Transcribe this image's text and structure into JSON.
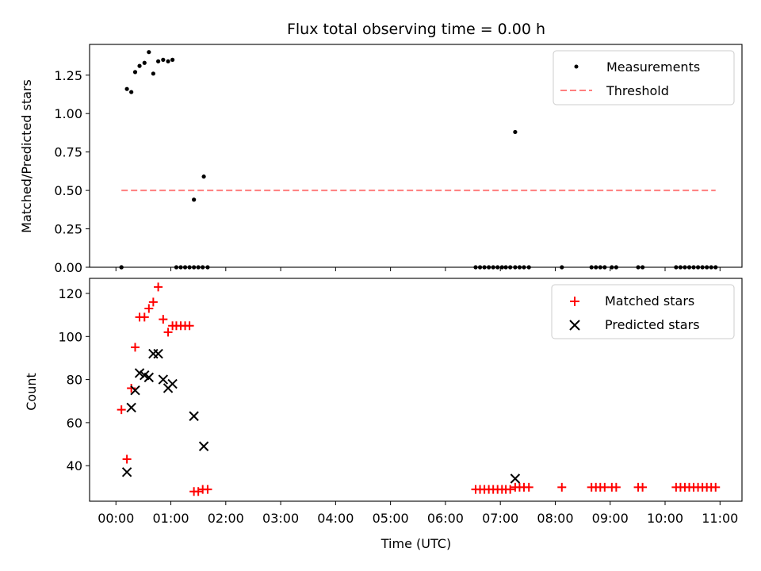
{
  "chart_data": [
    {
      "type": "scatter",
      "title": "Flux total observing time = 0.00 h",
      "xlabel": "",
      "ylabel": "Matched/Predicted stars",
      "xlim": [
        -0.48,
        11.4
      ],
      "ylim": [
        0,
        1.45
      ],
      "yticks": [
        0,
        0.25,
        0.5,
        0.75,
        1.0,
        1.25
      ],
      "ytick_labels": [
        "0.00",
        "0.25",
        "0.50",
        "0.75",
        "1.00",
        "1.25"
      ],
      "legend_position": "top-right",
      "series": [
        {
          "name": "Measurements",
          "marker": "dot",
          "color": "#000000",
          "x": [
            0.1,
            0.2,
            0.28,
            0.35,
            0.43,
            0.52,
            0.6,
            0.68,
            0.77,
            0.86,
            0.95,
            1.03,
            0.1,
            1.1,
            1.18,
            1.26,
            1.34,
            1.42,
            1.5,
            1.58,
            1.67,
            1.42,
            1.6,
            6.55,
            6.63,
            6.71,
            6.79,
            6.87,
            6.95,
            7.03,
            7.1,
            7.18,
            7.27,
            7.35,
            7.43,
            7.52,
            8.12,
            8.66,
            8.74,
            8.82,
            8.9,
            9.03,
            9.11,
            9.51,
            9.59,
            10.2,
            10.28,
            10.36,
            10.44,
            10.52,
            10.6,
            10.68,
            10.76,
            10.84,
            10.92,
            7.27
          ],
          "y": [
            0,
            1.16,
            1.14,
            1.27,
            1.31,
            1.33,
            1.4,
            1.26,
            1.34,
            1.35,
            1.34,
            1.35,
            0,
            0,
            0,
            0,
            0,
            0,
            0,
            0,
            0,
            0.44,
            0.59,
            0,
            0,
            0,
            0,
            0,
            0,
            0,
            0,
            0,
            0,
            0,
            0,
            0,
            0,
            0,
            0,
            0,
            0,
            0,
            0,
            0,
            0,
            0,
            0,
            0,
            0,
            0,
            0,
            0,
            0,
            0,
            0,
            0.88
          ]
        },
        {
          "name": "Threshold",
          "style": "dashed",
          "color": "#ff7f7f",
          "x": [
            0.1,
            10.92
          ],
          "y": [
            0.5,
            0.5
          ]
        }
      ]
    },
    {
      "type": "scatter",
      "title": "",
      "xlabel": "Time (UTC)",
      "ylabel": "Count",
      "xlim": [
        -0.48,
        11.4
      ],
      "ylim": [
        23.5,
        127
      ],
      "yticks": [
        40,
        60,
        80,
        100,
        120
      ],
      "ytick_labels": [
        "40",
        "60",
        "80",
        "100",
        "120"
      ],
      "xticks": [
        0,
        1,
        2,
        3,
        4,
        5,
        6,
        7,
        8,
        9,
        10,
        11
      ],
      "xtick_labels": [
        "00:00",
        "01:00",
        "02:00",
        "03:00",
        "04:00",
        "05:00",
        "06:00",
        "07:00",
        "08:00",
        "09:00",
        "10:00",
        "11:00"
      ],
      "legend_position": "top-right",
      "series": [
        {
          "name": "Matched stars",
          "marker": "plus",
          "color": "#ff0000",
          "x": [
            0.1,
            0.2,
            0.28,
            0.35,
            0.43,
            0.52,
            0.6,
            0.68,
            0.77,
            0.86,
            0.95,
            1.03,
            1.1,
            1.18,
            1.26,
            1.34,
            1.42,
            1.5,
            1.58,
            1.67,
            6.55,
            6.63,
            6.71,
            6.79,
            6.87,
            6.95,
            7.03,
            7.1,
            7.18,
            7.27,
            7.35,
            7.43,
            7.52,
            8.12,
            8.66,
            8.74,
            8.82,
            8.9,
            9.03,
            9.11,
            9.51,
            9.59,
            10.2,
            10.28,
            10.36,
            10.44,
            10.52,
            10.6,
            10.68,
            10.76,
            10.84,
            10.92
          ],
          "y": [
            66,
            43,
            76,
            95,
            109,
            109,
            113,
            116,
            123,
            108,
            102,
            105,
            105,
            105,
            105,
            105,
            28,
            28,
            29,
            29,
            29,
            29,
            29,
            29,
            29,
            29,
            29,
            29,
            29,
            30,
            30,
            30,
            30,
            30,
            30,
            30,
            30,
            30,
            30,
            30,
            30,
            30,
            30,
            30,
            30,
            30,
            30,
            30,
            30,
            30,
            30,
            30
          ]
        },
        {
          "name": "Predicted stars",
          "marker": "x",
          "color": "#000000",
          "x": [
            0.2,
            0.28,
            0.35,
            0.43,
            0.52,
            0.6,
            0.68,
            0.77,
            0.86,
            0.95,
            1.03,
            1.42,
            1.6,
            7.27
          ],
          "y": [
            37,
            67,
            75,
            83,
            82,
            81,
            92,
            92,
            80,
            76,
            78,
            63,
            49,
            34
          ]
        }
      ]
    }
  ]
}
